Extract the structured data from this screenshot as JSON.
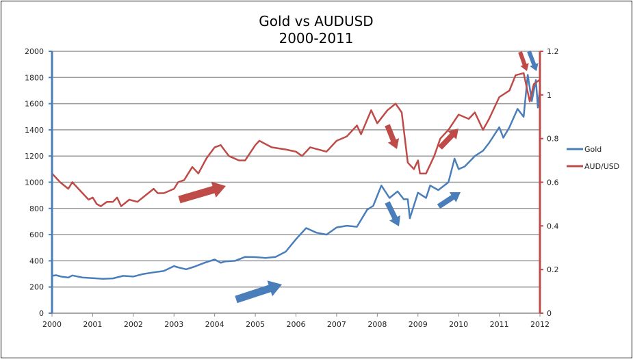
{
  "chart_data": {
    "type": "line",
    "title": "Gold vs AUDUSD",
    "subtitle": "2000-2011",
    "x_ticks": [
      "2000",
      "2001",
      "2002",
      "2003",
      "2004",
      "2005",
      "2006",
      "2007",
      "2008",
      "2009",
      "2010",
      "2011",
      "2012"
    ],
    "y_left": {
      "range": [
        0,
        2000
      ],
      "ticks": [
        "0",
        "200",
        "400",
        "600",
        "800",
        "1000",
        "1200",
        "1400",
        "1600",
        "1800",
        "2000"
      ],
      "color": "#4a7ebb"
    },
    "y_right": {
      "range": [
        0,
        1.2
      ],
      "ticks": [
        "0",
        "0.2",
        "0.4",
        "0.6",
        "0.8",
        "1",
        "1.2"
      ],
      "color": "#be4b48"
    },
    "grid": true,
    "legend": "right",
    "series": [
      {
        "name": "Gold",
        "axis": "left",
        "color": "#4a7ebb",
        "x": [
          2000,
          2000.1,
          2000.25,
          2000.4,
          2000.5,
          2000.75,
          2001,
          2001.25,
          2001.5,
          2001.75,
          2002,
          2002.25,
          2002.5,
          2002.75,
          2003,
          2003.1,
          2003.3,
          2003.5,
          2003.75,
          2004,
          2004.15,
          2004.25,
          2004.5,
          2004.75,
          2005,
          2005.25,
          2005.5,
          2005.75,
          2006,
          2006.25,
          2006.5,
          2006.75,
          2007,
          2007.25,
          2007.5,
          2007.75,
          2007.9,
          2008.1,
          2008.3,
          2008.5,
          2008.65,
          2008.75,
          2008.8,
          2009,
          2009.2,
          2009.3,
          2009.5,
          2009.75,
          2009.9,
          2010,
          2010.15,
          2010.4,
          2010.6,
          2010.75,
          2011,
          2011.1,
          2011.25,
          2011.45,
          2011.6,
          2011.7,
          2011.8,
          2011.9,
          2011.95,
          2012
        ],
        "values": [
          285,
          290,
          278,
          272,
          288,
          272,
          268,
          262,
          266,
          285,
          280,
          300,
          312,
          322,
          360,
          350,
          335,
          355,
          385,
          410,
          385,
          395,
          400,
          430,
          428,
          422,
          430,
          470,
          565,
          650,
          615,
          600,
          655,
          668,
          660,
          790,
          820,
          975,
          880,
          930,
          870,
          870,
          725,
          920,
          880,
          975,
          940,
          1000,
          1180,
          1100,
          1120,
          1200,
          1240,
          1300,
          1420,
          1340,
          1420,
          1560,
          1500,
          1820,
          1620,
          1780,
          1570,
          1720
        ]
      },
      {
        "name": "AUD/USD",
        "axis": "right",
        "color": "#be4b48",
        "x": [
          2000,
          2000.2,
          2000.4,
          2000.5,
          2000.75,
          2000.9,
          2001,
          2001.1,
          2001.2,
          2001.35,
          2001.5,
          2001.6,
          2001.7,
          2001.9,
          2002.1,
          2002.3,
          2002.5,
          2002.6,
          2002.75,
          2003,
          2003.1,
          2003.25,
          2003.45,
          2003.6,
          2003.8,
          2004,
          2004.15,
          2004.35,
          2004.6,
          2004.75,
          2005,
          2005.1,
          2005.4,
          2005.75,
          2006,
          2006.15,
          2006.35,
          2006.75,
          2007,
          2007.25,
          2007.5,
          2007.6,
          2007.85,
          2008,
          2008.25,
          2008.45,
          2008.6,
          2008.75,
          2008.9,
          2009,
          2009.05,
          2009.2,
          2009.4,
          2009.55,
          2009.75,
          2010,
          2010.25,
          2010.4,
          2010.6,
          2010.75,
          2011,
          2011.25,
          2011.4,
          2011.6,
          2011.75,
          2011.85,
          2012
        ],
        "values": [
          0.64,
          0.6,
          0.57,
          0.6,
          0.55,
          0.52,
          0.53,
          0.5,
          0.49,
          0.51,
          0.51,
          0.53,
          0.49,
          0.52,
          0.51,
          0.54,
          0.57,
          0.55,
          0.55,
          0.57,
          0.6,
          0.61,
          0.67,
          0.64,
          0.71,
          0.76,
          0.77,
          0.72,
          0.7,
          0.7,
          0.77,
          0.79,
          0.76,
          0.75,
          0.74,
          0.72,
          0.76,
          0.74,
          0.79,
          0.81,
          0.86,
          0.82,
          0.93,
          0.87,
          0.93,
          0.96,
          0.92,
          0.69,
          0.66,
          0.7,
          0.64,
          0.64,
          0.72,
          0.8,
          0.84,
          0.91,
          0.89,
          0.92,
          0.84,
          0.89,
          0.99,
          1.02,
          1.09,
          1.1,
          0.97,
          1.05,
          1.07
        ]
      }
    ]
  }
}
